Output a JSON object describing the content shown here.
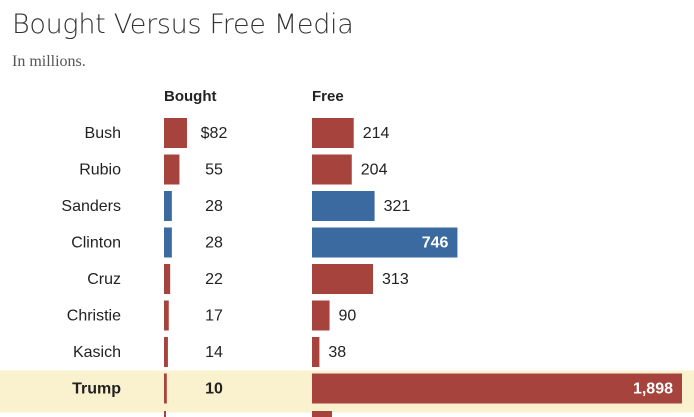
{
  "title": "Bought Versus Free Media",
  "subtitle": "In millions.",
  "headers": {
    "bought": "Bought",
    "free": "Free"
  },
  "colors": {
    "republican": "#a6433c",
    "democrat": "#3a6a9f",
    "highlight": "#faf1cf"
  },
  "chart_data": {
    "type": "bar",
    "title": "Bought Versus Free Media",
    "subtitle": "In millions.",
    "unit": "millions of dollars",
    "categories": [
      "Bush",
      "Rubio",
      "Sanders",
      "Clinton",
      "Cruz",
      "Christie",
      "Kasich",
      "Trump"
    ],
    "party": [
      "R",
      "R",
      "D",
      "D",
      "R",
      "R",
      "R",
      "R"
    ],
    "highlight": "Trump",
    "series": [
      {
        "name": "Bought",
        "values": [
          82,
          55,
          28,
          28,
          22,
          17,
          14,
          10
        ],
        "labels": [
          "$82",
          "55",
          "28",
          "28",
          "22",
          "17",
          "14",
          "10"
        ]
      },
      {
        "name": "Free",
        "values": [
          214,
          204,
          321,
          746,
          313,
          90,
          38,
          1898
        ],
        "labels": [
          "214",
          "204",
          "321",
          "746",
          "313",
          "90",
          "38",
          "1,898"
        ]
      }
    ]
  }
}
